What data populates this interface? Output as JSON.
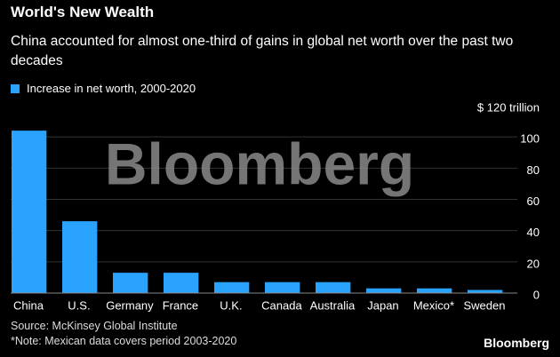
{
  "chart_data": {
    "type": "bar",
    "title": "World's New Wealth",
    "subtitle": "China accounted for almost one-third of gains in global net worth over the past two decades",
    "categories": [
      "China",
      "U.S.",
      "Germany",
      "France",
      "U.K.",
      "Canada",
      "Australia",
      "Japan",
      "Mexico*",
      "Sweden"
    ],
    "series": [
      {
        "name": "Increase in net worth, 2000-2020",
        "color": "#2aa3ff",
        "values": [
          104,
          46,
          13,
          13,
          7,
          7,
          7,
          3,
          3,
          2
        ]
      }
    ],
    "ylim": [
      0,
      120
    ],
    "yticks": [
      0,
      20,
      40,
      60,
      80,
      100,
      {
        "value": 120,
        "label": "$ 120 trillion"
      }
    ],
    "grid": true,
    "watermark": "Bloomberg",
    "source": "Source: McKinsey Global Institute",
    "note": "*Note: Mexican data covers period 2003-2020",
    "logo": "Bloomberg"
  }
}
